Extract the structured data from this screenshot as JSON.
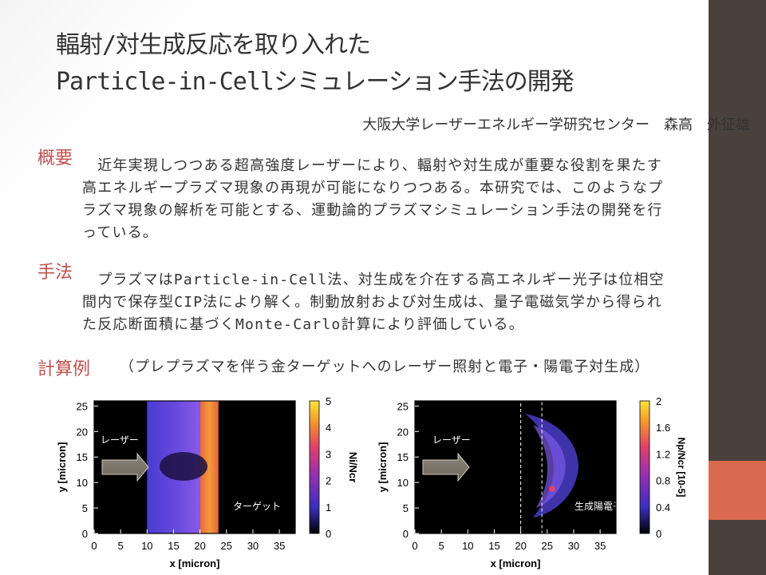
{
  "slide": {
    "title_line1": "輻射/対生成反応を取り入れた",
    "title_line2": "Particle-in-Cellシミュレーション手法の開発",
    "author": "大阪大学レーザーエネルギー学研究センター　森高　外征雄"
  },
  "sections": {
    "overview": {
      "heading": "概要",
      "text": "　近年実現しつつある超高強度レーザーにより、輻射や対生成が重要な役割を果たす高エネルギープラズマ現象の再現が可能になりつつある。本研究では、このようなプラズマ現象の解析を可能とする、運動論的プラズマシミュレーション手法の開発を行っている。"
    },
    "method": {
      "heading": "手法",
      "text": "　プラズマはParticle-in-Cell法、対生成を介在する高エネルギー光子は位相空間内で保存型CIP法により解く。制動放射および対生成は、量子電磁気学から得られた反応断面積に基づくMonte-Carlo計算により評価している。"
    },
    "example": {
      "heading": "計算例",
      "note": "（プレプラズマを伴う金ターゲットへのレーザー照射と電子・陽電子対生成）"
    }
  },
  "chart_data": [
    {
      "type": "heatmap",
      "xlabel": "x [micron]",
      "ylabel": "y [micron]",
      "colorbar_label": "Ni/Ncr",
      "x_ticks": [
        0,
        5,
        10,
        15,
        20,
        25,
        30,
        35
      ],
      "y_ticks": [
        0,
        5,
        10,
        15,
        20,
        25
      ],
      "colorbar_ticks": [
        0,
        1,
        2,
        3,
        4,
        5
      ],
      "xlim": [
        0,
        38
      ],
      "ylim": [
        0,
        26
      ],
      "clim": [
        0,
        5
      ],
      "annotations": [
        "レーザー",
        "ターゲット"
      ],
      "regions": [
        {
          "x": [
            10,
            20
          ],
          "y": [
            0,
            26
          ],
          "value": 0.7
        },
        {
          "x": [
            20,
            23.5
          ],
          "y": [
            0,
            26
          ],
          "value": 3.5
        }
      ]
    },
    {
      "type": "heatmap",
      "xlabel": "x [micron]",
      "ylabel": "y [micron]",
      "colorbar_label": "Np/Ncr [10-5]",
      "x_ticks": [
        0,
        5,
        10,
        15,
        20,
        25,
        30,
        35
      ],
      "y_ticks": [
        0,
        5,
        10,
        15,
        20,
        25
      ],
      "colorbar_ticks": [
        "0",
        "0.4",
        "0.8",
        "1.2",
        "1.6",
        "2"
      ],
      "xlim": [
        0,
        38
      ],
      "ylim": [
        0,
        26
      ],
      "clim": [
        0,
        2
      ],
      "annotations": [
        "レーザー",
        "生成陽電子"
      ],
      "dashed_box_x": [
        20,
        24
      ]
    }
  ],
  "colors": {
    "accent": "#c0504d",
    "sidebar": "#4a413c",
    "sidebar_accent": "#d9694f"
  }
}
